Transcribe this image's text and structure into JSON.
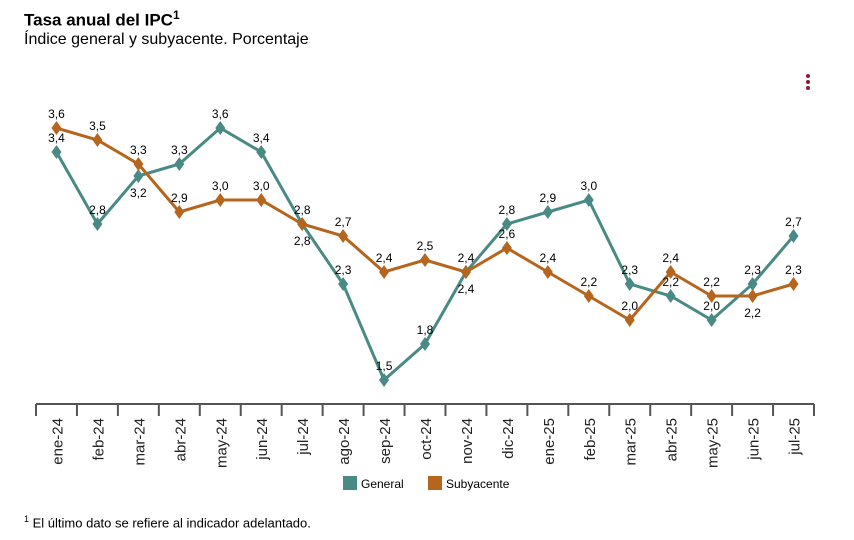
{
  "title": "Tasa anual del IPC",
  "title_sup": "1",
  "subtitle": "Índice general y subyacente. Porcentaje",
  "footnote_sup": "1",
  "footnote": "El último dato se refiere al indicador adelantado.",
  "menu_icon": "vertical-dots-icon",
  "chart_data": {
    "type": "line",
    "categories": [
      "ene-24",
      "feb-24",
      "mar-24",
      "abr-24",
      "may-24",
      "jun-24",
      "jul-24",
      "ago-24",
      "sep-24",
      "oct-24",
      "nov-24",
      "dic-24",
      "ene-25",
      "feb-25",
      "mar-25",
      "abr-25",
      "may-25",
      "jun-25",
      "jul-25"
    ],
    "series": [
      {
        "name": "General",
        "color": "#4a8a84",
        "values": [
          3.4,
          2.8,
          3.2,
          3.3,
          3.6,
          3.4,
          2.8,
          2.3,
          1.5,
          1.8,
          2.4,
          2.8,
          2.9,
          3.0,
          2.3,
          2.2,
          2.0,
          2.3,
          2.7
        ]
      },
      {
        "name": "Subyacente",
        "color": "#b5651d",
        "values": [
          3.6,
          3.5,
          3.3,
          2.9,
          3.0,
          3.0,
          2.8,
          2.7,
          2.4,
          2.5,
          2.4,
          2.6,
          2.4,
          2.2,
          2.0,
          2.4,
          2.2,
          2.2,
          2.3
        ]
      }
    ],
    "ylim": [
      1.3,
      4.0
    ],
    "grid": false,
    "legend": "bottom",
    "marker": "diamond",
    "decimal_separator": ","
  }
}
